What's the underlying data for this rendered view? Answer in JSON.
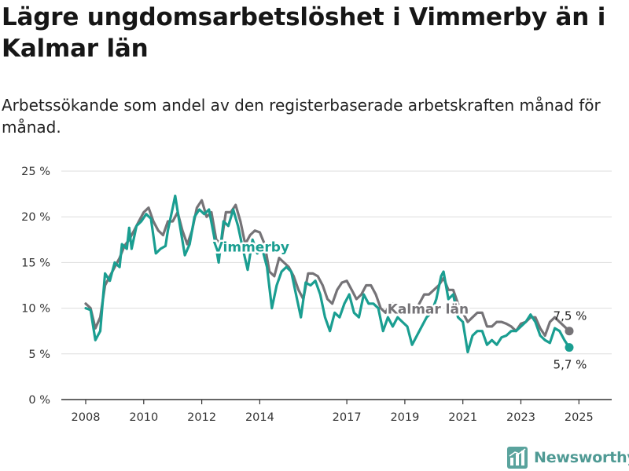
{
  "title": "Lägre ungdomsarbetslöshet i Vimmerby än i Kalmar län",
  "subtitle": "Arbetssökande som andel av den registerbaserade arbetskraften månad för månad.",
  "brand": {
    "name": "Newsworthy",
    "icon": "bar-chart-logo-icon"
  },
  "colors": {
    "vimmerby": "#1a9e91",
    "kalmar": "#757377",
    "grid": "#dddddd",
    "axis": "#333333"
  },
  "chart_data": {
    "type": "line",
    "ylim": [
      0,
      25
    ],
    "yticks": [
      "0 %",
      "5 %",
      "10 %",
      "15 %",
      "20 %",
      "25 %"
    ],
    "xticks": [
      "2008",
      "2010",
      "2012",
      "2014",
      "2017",
      "2019",
      "2021",
      "2023",
      "2025"
    ],
    "grid": true,
    "series": [
      {
        "name": "Vimmerby",
        "color": "#1a9e91",
        "end_label": "5,7 %",
        "points": [
          [
            "2008-01",
            10.0
          ],
          [
            "2008-03",
            9.8
          ],
          [
            "2008-05",
            6.5
          ],
          [
            "2008-07",
            7.5
          ],
          [
            "2008-09",
            13.8
          ],
          [
            "2008-11",
            13.0
          ],
          [
            "2009-01",
            15.0
          ],
          [
            "2009-03",
            14.5
          ],
          [
            "2009-04",
            17.0
          ],
          [
            "2009-06",
            16.5
          ],
          [
            "2009-07",
            18.8
          ],
          [
            "2009-08",
            16.5
          ],
          [
            "2009-10",
            19.0
          ],
          [
            "2009-12",
            19.5
          ],
          [
            "2010-02",
            20.3
          ],
          [
            "2010-04",
            19.8
          ],
          [
            "2010-06",
            16.0
          ],
          [
            "2010-08",
            16.5
          ],
          [
            "2010-10",
            16.8
          ],
          [
            "2010-11",
            18.5
          ],
          [
            "2011-01",
            21.0
          ],
          [
            "2011-02",
            22.3
          ],
          [
            "2011-04",
            19.0
          ],
          [
            "2011-06",
            15.8
          ],
          [
            "2011-08",
            17.0
          ],
          [
            "2011-10",
            20.0
          ],
          [
            "2011-12",
            20.8
          ],
          [
            "2012-02",
            20.3
          ],
          [
            "2012-04",
            20.8
          ],
          [
            "2012-06",
            18.0
          ],
          [
            "2012-08",
            15.0
          ],
          [
            "2012-10",
            19.5
          ],
          [
            "2012-12",
            19.0
          ],
          [
            "2013-02",
            20.8
          ],
          [
            "2013-04",
            19.0
          ],
          [
            "2013-06",
            16.5
          ],
          [
            "2013-08",
            14.2
          ],
          [
            "2013-10",
            17.5
          ],
          [
            "2013-12",
            16.0
          ],
          [
            "2014-02",
            16.5
          ],
          [
            "2014-04",
            14.5
          ],
          [
            "2014-06",
            10.0
          ],
          [
            "2014-08",
            12.5
          ],
          [
            "2014-10",
            14.0
          ],
          [
            "2014-12",
            14.5
          ],
          [
            "2015-02",
            14.0
          ],
          [
            "2015-04",
            11.5
          ],
          [
            "2015-06",
            9.0
          ],
          [
            "2015-08",
            12.8
          ],
          [
            "2015-10",
            12.5
          ],
          [
            "2015-12",
            13.0
          ],
          [
            "2016-02",
            11.5
          ],
          [
            "2016-04",
            9.0
          ],
          [
            "2016-06",
            7.5
          ],
          [
            "2016-08",
            9.5
          ],
          [
            "2016-10",
            9.0
          ],
          [
            "2016-12",
            10.5
          ],
          [
            "2017-02",
            11.5
          ],
          [
            "2017-04",
            9.5
          ],
          [
            "2017-06",
            9.0
          ],
          [
            "2017-08",
            11.5
          ],
          [
            "2017-10",
            10.5
          ],
          [
            "2017-12",
            10.5
          ],
          [
            "2018-02",
            10.0
          ],
          [
            "2018-04",
            7.5
          ],
          [
            "2018-06",
            9.0
          ],
          [
            "2018-08",
            8.0
          ],
          [
            "2018-10",
            9.0
          ],
          [
            "2018-12",
            8.5
          ],
          [
            "2019-02",
            8.0
          ],
          [
            "2019-04",
            6.0
          ],
          [
            "2019-06",
            7.0
          ],
          [
            "2019-08",
            8.0
          ],
          [
            "2019-10",
            9.0
          ],
          [
            "2019-12",
            9.5
          ],
          [
            "2020-02",
            11.0
          ],
          [
            "2020-04",
            13.5
          ],
          [
            "2020-05",
            14.0
          ],
          [
            "2020-07",
            11.0
          ],
          [
            "2020-09",
            11.5
          ],
          [
            "2020-11",
            9.0
          ],
          [
            "2021-01",
            8.5
          ],
          [
            "2021-03",
            5.2
          ],
          [
            "2021-05",
            7.0
          ],
          [
            "2021-07",
            7.5
          ],
          [
            "2021-09",
            7.5
          ],
          [
            "2021-11",
            6.0
          ],
          [
            "2022-01",
            6.5
          ],
          [
            "2022-03",
            6.0
          ],
          [
            "2022-05",
            6.8
          ],
          [
            "2022-07",
            7.0
          ],
          [
            "2022-09",
            7.5
          ],
          [
            "2022-11",
            7.5
          ],
          [
            "2023-01",
            8.0
          ],
          [
            "2023-03",
            8.5
          ],
          [
            "2023-05",
            9.3
          ],
          [
            "2023-07",
            8.5
          ],
          [
            "2023-09",
            7.0
          ],
          [
            "2023-11",
            6.5
          ],
          [
            "2024-01",
            6.2
          ],
          [
            "2024-03",
            7.8
          ],
          [
            "2024-05",
            7.5
          ],
          [
            "2024-07",
            6.5
          ],
          [
            "2024-09",
            5.7
          ]
        ]
      },
      {
        "name": "Kalmar län",
        "color": "#757377",
        "end_label": "7,5 %",
        "points": [
          [
            "2008-01",
            10.5
          ],
          [
            "2008-03",
            10.0
          ],
          [
            "2008-05",
            7.8
          ],
          [
            "2008-07",
            9.0
          ],
          [
            "2008-09",
            12.5
          ],
          [
            "2008-11",
            13.5
          ],
          [
            "2009-01",
            14.5
          ],
          [
            "2009-03",
            15.5
          ],
          [
            "2009-05",
            16.8
          ],
          [
            "2009-07",
            17.5
          ],
          [
            "2009-09",
            18.5
          ],
          [
            "2009-11",
            19.5
          ],
          [
            "2010-01",
            20.5
          ],
          [
            "2010-03",
            21.0
          ],
          [
            "2010-05",
            19.5
          ],
          [
            "2010-07",
            18.5
          ],
          [
            "2010-09",
            18.0
          ],
          [
            "2010-11",
            19.5
          ],
          [
            "2011-01",
            19.5
          ],
          [
            "2011-03",
            20.5
          ],
          [
            "2011-05",
            18.5
          ],
          [
            "2011-07",
            17.0
          ],
          [
            "2011-09",
            18.5
          ],
          [
            "2011-11",
            21.0
          ],
          [
            "2012-01",
            21.8
          ],
          [
            "2012-03",
            20.0
          ],
          [
            "2012-05",
            20.5
          ],
          [
            "2012-07",
            17.5
          ],
          [
            "2012-09",
            17.0
          ],
          [
            "2012-11",
            20.5
          ],
          [
            "2013-01",
            20.5
          ],
          [
            "2013-03",
            21.3
          ],
          [
            "2013-05",
            19.5
          ],
          [
            "2013-07",
            17.0
          ],
          [
            "2013-09",
            18.0
          ],
          [
            "2013-11",
            18.5
          ],
          [
            "2014-01",
            18.3
          ],
          [
            "2014-03",
            17.0
          ],
          [
            "2014-05",
            14.0
          ],
          [
            "2014-07",
            13.5
          ],
          [
            "2014-09",
            15.5
          ],
          [
            "2014-11",
            15.0
          ],
          [
            "2015-01",
            14.5
          ],
          [
            "2015-03",
            13.5
          ],
          [
            "2015-05",
            12.0
          ],
          [
            "2015-07",
            11.0
          ],
          [
            "2015-09",
            13.8
          ],
          [
            "2015-11",
            13.8
          ],
          [
            "2016-01",
            13.5
          ],
          [
            "2016-03",
            12.5
          ],
          [
            "2016-05",
            11.0
          ],
          [
            "2016-07",
            10.5
          ],
          [
            "2016-09",
            12.0
          ],
          [
            "2016-11",
            12.8
          ],
          [
            "2017-01",
            13.0
          ],
          [
            "2017-03",
            12.0
          ],
          [
            "2017-05",
            11.0
          ],
          [
            "2017-07",
            11.5
          ],
          [
            "2017-09",
            12.5
          ],
          [
            "2017-11",
            12.5
          ],
          [
            "2018-01",
            11.5
          ],
          [
            "2018-03",
            10.0
          ],
          [
            "2018-05",
            9.5
          ],
          [
            "2018-07",
            10.5
          ],
          [
            "2018-09",
            10.5
          ],
          [
            "2018-11",
            10.0
          ],
          [
            "2019-01",
            9.8
          ],
          [
            "2019-03",
            9.5
          ],
          [
            "2019-05",
            9.5
          ],
          [
            "2019-07",
            10.5
          ],
          [
            "2019-09",
            11.5
          ],
          [
            "2019-11",
            11.5
          ],
          [
            "2020-01",
            12.0
          ],
          [
            "2020-03",
            12.5
          ],
          [
            "2020-05",
            13.3
          ],
          [
            "2020-07",
            12.0
          ],
          [
            "2020-09",
            12.0
          ],
          [
            "2020-11",
            10.5
          ],
          [
            "2021-01",
            9.5
          ],
          [
            "2021-03",
            8.5
          ],
          [
            "2021-05",
            9.0
          ],
          [
            "2021-07",
            9.5
          ],
          [
            "2021-09",
            9.5
          ],
          [
            "2021-11",
            8.0
          ],
          [
            "2022-01",
            8.0
          ],
          [
            "2022-03",
            8.5
          ],
          [
            "2022-05",
            8.5
          ],
          [
            "2022-07",
            8.3
          ],
          [
            "2022-09",
            8.0
          ],
          [
            "2022-11",
            7.5
          ],
          [
            "2023-01",
            8.3
          ],
          [
            "2023-03",
            8.5
          ],
          [
            "2023-05",
            9.0
          ],
          [
            "2023-07",
            9.0
          ],
          [
            "2023-09",
            7.8
          ],
          [
            "2023-11",
            7.0
          ],
          [
            "2024-01",
            8.5
          ],
          [
            "2024-03",
            9.0
          ],
          [
            "2024-05",
            8.5
          ],
          [
            "2024-07",
            8.0
          ],
          [
            "2024-09",
            7.5
          ]
        ]
      }
    ]
  }
}
